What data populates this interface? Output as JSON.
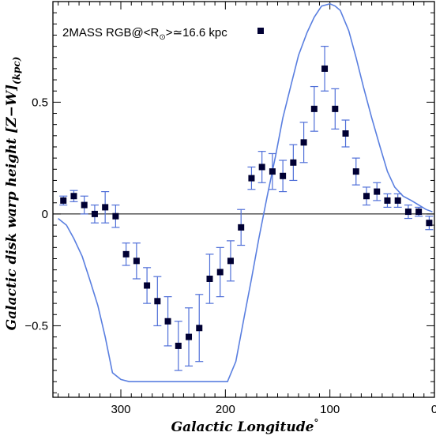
{
  "chart_data": {
    "type": "scatter",
    "xlabel": "Galactic Longitude",
    "xlabel_suffix": "°",
    "ylabel_main": "Galactic disk warp height [Z−W]",
    "ylabel_sub": "(kpc)",
    "legend": {
      "text": "2MASS RGB@<R",
      "subscript": "⊙",
      "text_after": ">≃16.6 kpc"
    },
    "xlim": [
      0,
      365
    ],
    "x_reversed": true,
    "ylim": [
      -0.82,
      0.95
    ],
    "xticks": [
      {
        "value": 300,
        "label": "300"
      },
      {
        "value": 200,
        "label": "200"
      },
      {
        "value": 100,
        "label": "100"
      },
      {
        "value": 0,
        "label": "0"
      }
    ],
    "yticks": [
      {
        "value": 0.5,
        "label": "0.5"
      },
      {
        "value": 0,
        "label": "0"
      },
      {
        "value": -0.5,
        "label": "−0.5"
      }
    ],
    "zero_line": true,
    "colors": {
      "points": "#000033",
      "errorbars": "#4f6fd8",
      "model": "#5a7fe0"
    },
    "series": [
      {
        "kind": "points",
        "x": [
          355,
          345,
          335,
          325,
          315,
          305,
          295,
          285,
          275,
          265,
          255,
          245,
          235,
          225,
          215,
          205,
          195,
          185,
          175,
          165,
          155,
          145,
          135,
          125,
          115,
          105,
          95,
          85,
          75,
          65,
          55,
          45,
          35,
          25,
          15,
          5
        ],
        "y": [
          0.06,
          0.08,
          0.04,
          0.0,
          0.03,
          -0.01,
          -0.18,
          -0.21,
          -0.32,
          -0.39,
          -0.48,
          -0.59,
          -0.55,
          -0.51,
          -0.29,
          -0.26,
          -0.21,
          -0.06,
          0.16,
          0.21,
          0.19,
          0.17,
          0.23,
          0.32,
          0.47,
          0.65,
          0.47,
          0.36,
          0.19,
          0.08,
          0.1,
          0.06,
          0.06,
          0.01,
          0.01,
          -0.04
        ],
        "err": [
          0.02,
          0.025,
          0.04,
          0.04,
          0.07,
          0.05,
          0.05,
          0.08,
          0.08,
          0.11,
          0.11,
          0.11,
          0.13,
          0.15,
          0.11,
          0.11,
          0.09,
          0.08,
          0.05,
          0.07,
          0.08,
          0.07,
          0.08,
          0.09,
          0.1,
          0.1,
          0.09,
          0.06,
          0.06,
          0.04,
          0.04,
          0.03,
          0.03,
          0.03,
          0.02,
          0.03
        ]
      },
      {
        "kind": "model",
        "x": [
          360,
          352,
          345,
          337,
          330,
          322,
          315,
          308,
          300,
          292,
          285,
          278,
          270,
          262,
          255,
          245,
          235,
          225,
          215,
          205,
          198,
          190,
          182,
          175,
          168,
          160,
          152,
          145,
          137,
          130,
          122,
          115,
          108,
          100,
          95,
          90,
          82,
          75,
          68,
          60,
          52,
          45,
          38,
          30,
          22,
          15,
          8,
          2
        ],
        "y": [
          -0.02,
          -0.05,
          -0.11,
          -0.19,
          -0.29,
          -0.41,
          -0.55,
          -0.71,
          -0.74,
          -0.75,
          -0.75,
          -0.75,
          -0.75,
          -0.75,
          -0.75,
          -0.75,
          -0.75,
          -0.75,
          -0.75,
          -0.75,
          -0.75,
          -0.66,
          -0.46,
          -0.29,
          -0.11,
          0.08,
          0.26,
          0.43,
          0.58,
          0.71,
          0.81,
          0.88,
          0.93,
          0.94,
          0.93,
          0.91,
          0.82,
          0.7,
          0.57,
          0.43,
          0.3,
          0.19,
          0.12,
          0.08,
          0.06,
          0.04,
          0.02,
          0.01
        ]
      }
    ]
  }
}
